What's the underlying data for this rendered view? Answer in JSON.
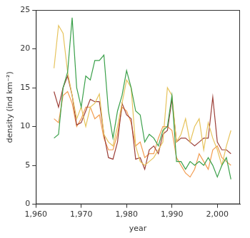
{
  "chart_data": {
    "type": "line",
    "x_label": "year",
    "y_label": "density (ind km⁻²)",
    "x": [
      1964,
      1965,
      1966,
      1967,
      1968,
      1969,
      1970,
      1971,
      1972,
      1973,
      1974,
      1975,
      1976,
      1977,
      1978,
      1979,
      1980,
      1981,
      1982,
      1983,
      1984,
      1985,
      1986,
      1987,
      1988,
      1989,
      1990,
      1991,
      1992,
      1993,
      1994,
      1995,
      1996,
      1997,
      1998,
      1999,
      2000,
      2001,
      2002,
      2003
    ],
    "series": [
      {
        "color": "#3aa04a",
        "values": [
          8.5,
          9,
          15,
          17,
          24,
          15,
          12.5,
          16.5,
          16,
          18.5,
          18.5,
          19.2,
          12,
          8.5,
          12,
          14,
          17.2,
          15,
          12,
          11.5,
          8,
          9,
          8.5,
          7.5,
          9.5,
          10,
          14,
          5.5,
          5.5,
          4.5,
          5.5,
          5,
          5.5,
          5,
          6,
          5,
          3.5,
          5,
          6,
          3.2
        ]
      },
      {
        "color": "#e6c35c",
        "values": [
          17.5,
          23,
          22,
          17,
          14,
          11,
          12.5,
          10,
          12.5,
          13,
          14.2,
          9,
          8,
          7.5,
          10,
          13,
          16,
          15,
          7.5,
          5.5,
          5,
          5.5,
          6,
          7,
          8,
          15,
          14,
          8,
          9,
          11,
          8,
          10,
          11,
          7,
          10.5,
          8.5,
          7,
          5,
          7.5,
          9.5
        ]
      },
      {
        "color": "#9c3f38",
        "values": [
          14.5,
          12.5,
          15,
          16.5,
          14,
          10.2,
          10.5,
          12,
          13.5,
          13.2,
          13.2,
          9,
          6,
          5.8,
          8,
          13,
          11.5,
          11,
          5.8,
          6,
          4.5,
          7,
          7.5,
          6.5,
          9,
          9.5,
          13.5,
          8,
          8.5,
          8.5,
          8,
          7.5,
          8,
          8.5,
          8.5,
          13.8,
          8,
          7,
          7,
          6.5
        ]
      },
      {
        "color": "#f29c50",
        "values": [
          11,
          10.5,
          14,
          14.5,
          13,
          10,
          11,
          12.5,
          12.5,
          11,
          11.5,
          8.5,
          7,
          7,
          9,
          12.5,
          12,
          10.5,
          7.5,
          8,
          6,
          6.5,
          6.5,
          8.5,
          10,
          10,
          9.5,
          6,
          5,
          4,
          3.5,
          4.5,
          6.5,
          5.5,
          4.5,
          7,
          7.5,
          6,
          5.5,
          5
        ]
      }
    ],
    "xlim": [
      1960,
      2005
    ],
    "xticks": [
      1960,
      1970,
      1980,
      1990,
      2000
    ],
    "ylim": [
      0,
      25
    ],
    "yticks": [
      0,
      5,
      10,
      15,
      20,
      25
    ],
    "grid": false
  }
}
